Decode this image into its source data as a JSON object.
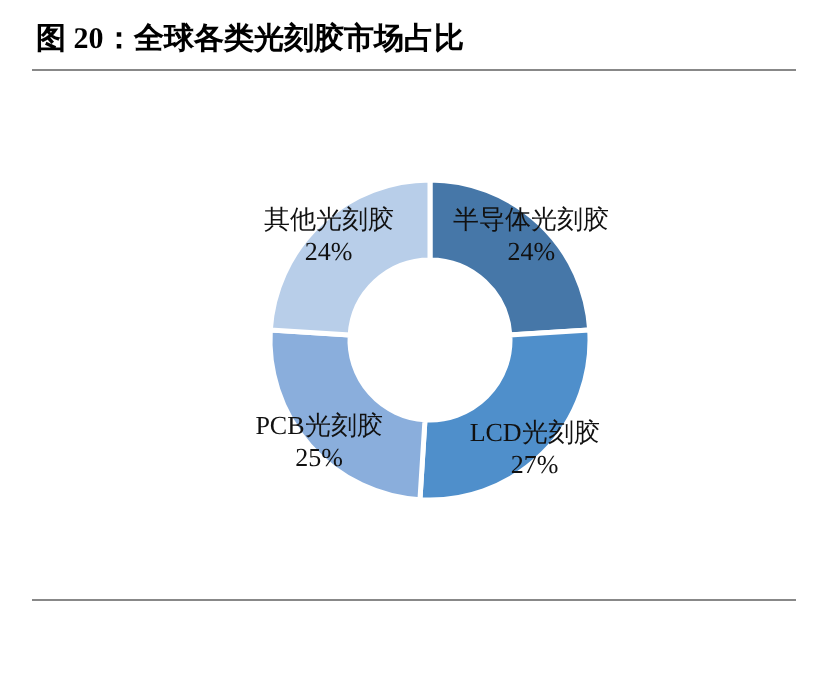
{
  "chart_data": {
    "type": "donut",
    "title": "图 20：全球各类光刻胶市场占比",
    "categories": [
      "半导体光刻胶",
      "LCD光刻胶",
      "PCB光刻胶",
      "其他光刻胶"
    ],
    "values": [
      24,
      27,
      25,
      24
    ],
    "colors": [
      "#4677a8",
      "#4f8fcb",
      "#8aaedc",
      "#b8cee9"
    ],
    "value_labels": [
      "24%",
      "27%",
      "25%",
      "24%"
    ],
    "legend": false
  }
}
